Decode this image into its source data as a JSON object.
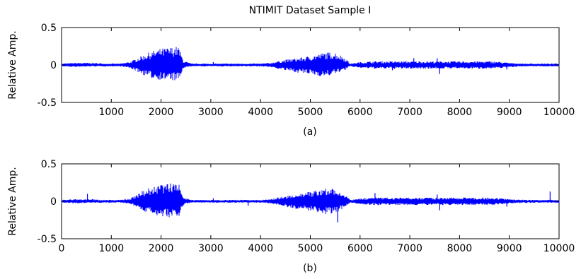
{
  "title": "NTIMIT Dataset Sample I",
  "colors": {
    "signal": "#0000ff",
    "axes": "#000000",
    "background": "#ffffff"
  },
  "chart_data": [
    {
      "type": "line",
      "title": "NTIMIT Dataset Sample I",
      "xlabel": "(a)",
      "ylabel": "Relative Amp.",
      "xlim": [
        0,
        10000
      ],
      "ylim": [
        -0.5,
        0.5
      ],
      "xticks": [
        "1000",
        "2000",
        "3000",
        "4000",
        "5000",
        "6000",
        "7000",
        "8000",
        "9000",
        "10000"
      ],
      "yticks": [
        "-0.5",
        "0",
        "0.5"
      ],
      "grid": false,
      "envelope": {
        "x": [
          0,
          300,
          600,
          900,
          1200,
          1400,
          1600,
          1800,
          2000,
          2200,
          2350,
          2450,
          2600,
          3000,
          3500,
          4000,
          4200,
          4400,
          4700,
          5000,
          5300,
          5500,
          5700,
          5800,
          6000,
          6300,
          6800,
          7300,
          7700,
          8200,
          8700,
          9000,
          9300,
          10000
        ],
        "max": [
          0.02,
          0.03,
          0.03,
          0.02,
          0.02,
          0.05,
          0.12,
          0.18,
          0.22,
          0.24,
          0.25,
          0.06,
          0.02,
          0.02,
          0.02,
          0.02,
          0.03,
          0.06,
          0.09,
          0.12,
          0.17,
          0.17,
          0.1,
          0.02,
          0.04,
          0.05,
          0.05,
          0.05,
          0.05,
          0.05,
          0.05,
          0.03,
          0.02,
          0.02
        ],
        "min": [
          -0.02,
          -0.03,
          -0.02,
          -0.02,
          -0.02,
          -0.05,
          -0.12,
          -0.18,
          -0.2,
          -0.21,
          -0.22,
          -0.05,
          -0.02,
          -0.02,
          -0.02,
          -0.02,
          -0.03,
          -0.06,
          -0.1,
          -0.13,
          -0.16,
          -0.12,
          -0.07,
          -0.02,
          -0.04,
          -0.05,
          -0.05,
          -0.05,
          -0.05,
          -0.05,
          -0.05,
          -0.03,
          -0.02,
          -0.02
        ]
      },
      "spikes": [
        {
          "x": 7600,
          "y": -0.12
        },
        {
          "x": 7550,
          "y": 0.09
        },
        {
          "x": 7080,
          "y": 0.09
        },
        {
          "x": 6650,
          "y": -0.07
        },
        {
          "x": 8950,
          "y": -0.06
        },
        {
          "x": 3050,
          "y": 0.04
        }
      ]
    },
    {
      "type": "line",
      "title": "",
      "xlabel": "(b)",
      "ylabel": "Relative Amp.",
      "xlim": [
        0,
        10000
      ],
      "ylim": [
        -0.5,
        0.5
      ],
      "xticks": [
        "0",
        "1000",
        "2000",
        "3000",
        "4000",
        "5000",
        "6000",
        "7000",
        "8000",
        "9000",
        "10000"
      ],
      "yticks": [
        "-0.5",
        "0",
        "0.5"
      ],
      "grid": false,
      "envelope": {
        "x": [
          0,
          300,
          600,
          900,
          1200,
          1400,
          1600,
          1800,
          2000,
          2200,
          2350,
          2450,
          2600,
          3000,
          3500,
          4000,
          4200,
          4400,
          4700,
          5000,
          5300,
          5500,
          5700,
          5800,
          6000,
          6300,
          6800,
          7300,
          7700,
          8200,
          8700,
          9000,
          9300,
          10000
        ],
        "max": [
          0.02,
          0.03,
          0.03,
          0.02,
          0.02,
          0.05,
          0.13,
          0.19,
          0.23,
          0.24,
          0.26,
          0.06,
          0.02,
          0.02,
          0.02,
          0.02,
          0.03,
          0.06,
          0.09,
          0.13,
          0.18,
          0.17,
          0.1,
          0.02,
          0.04,
          0.05,
          0.05,
          0.05,
          0.05,
          0.05,
          0.05,
          0.03,
          0.02,
          0.02
        ],
        "min": [
          -0.02,
          -0.03,
          -0.02,
          -0.02,
          -0.02,
          -0.05,
          -0.12,
          -0.18,
          -0.2,
          -0.22,
          -0.22,
          -0.05,
          -0.02,
          -0.02,
          -0.02,
          -0.02,
          -0.03,
          -0.06,
          -0.1,
          -0.13,
          -0.17,
          -0.16,
          -0.08,
          -0.02,
          -0.04,
          -0.05,
          -0.05,
          -0.05,
          -0.05,
          -0.05,
          -0.05,
          -0.03,
          -0.02,
          -0.02
        ]
      },
      "spikes": [
        {
          "x": 520,
          "y": 0.1
        },
        {
          "x": 3750,
          "y": -0.06
        },
        {
          "x": 5550,
          "y": -0.28
        },
        {
          "x": 6300,
          "y": 0.11
        },
        {
          "x": 7550,
          "y": 0.09
        },
        {
          "x": 7600,
          "y": -0.12
        },
        {
          "x": 8950,
          "y": -0.07
        },
        {
          "x": 9820,
          "y": 0.13
        },
        {
          "x": 3050,
          "y": 0.04
        }
      ]
    }
  ]
}
